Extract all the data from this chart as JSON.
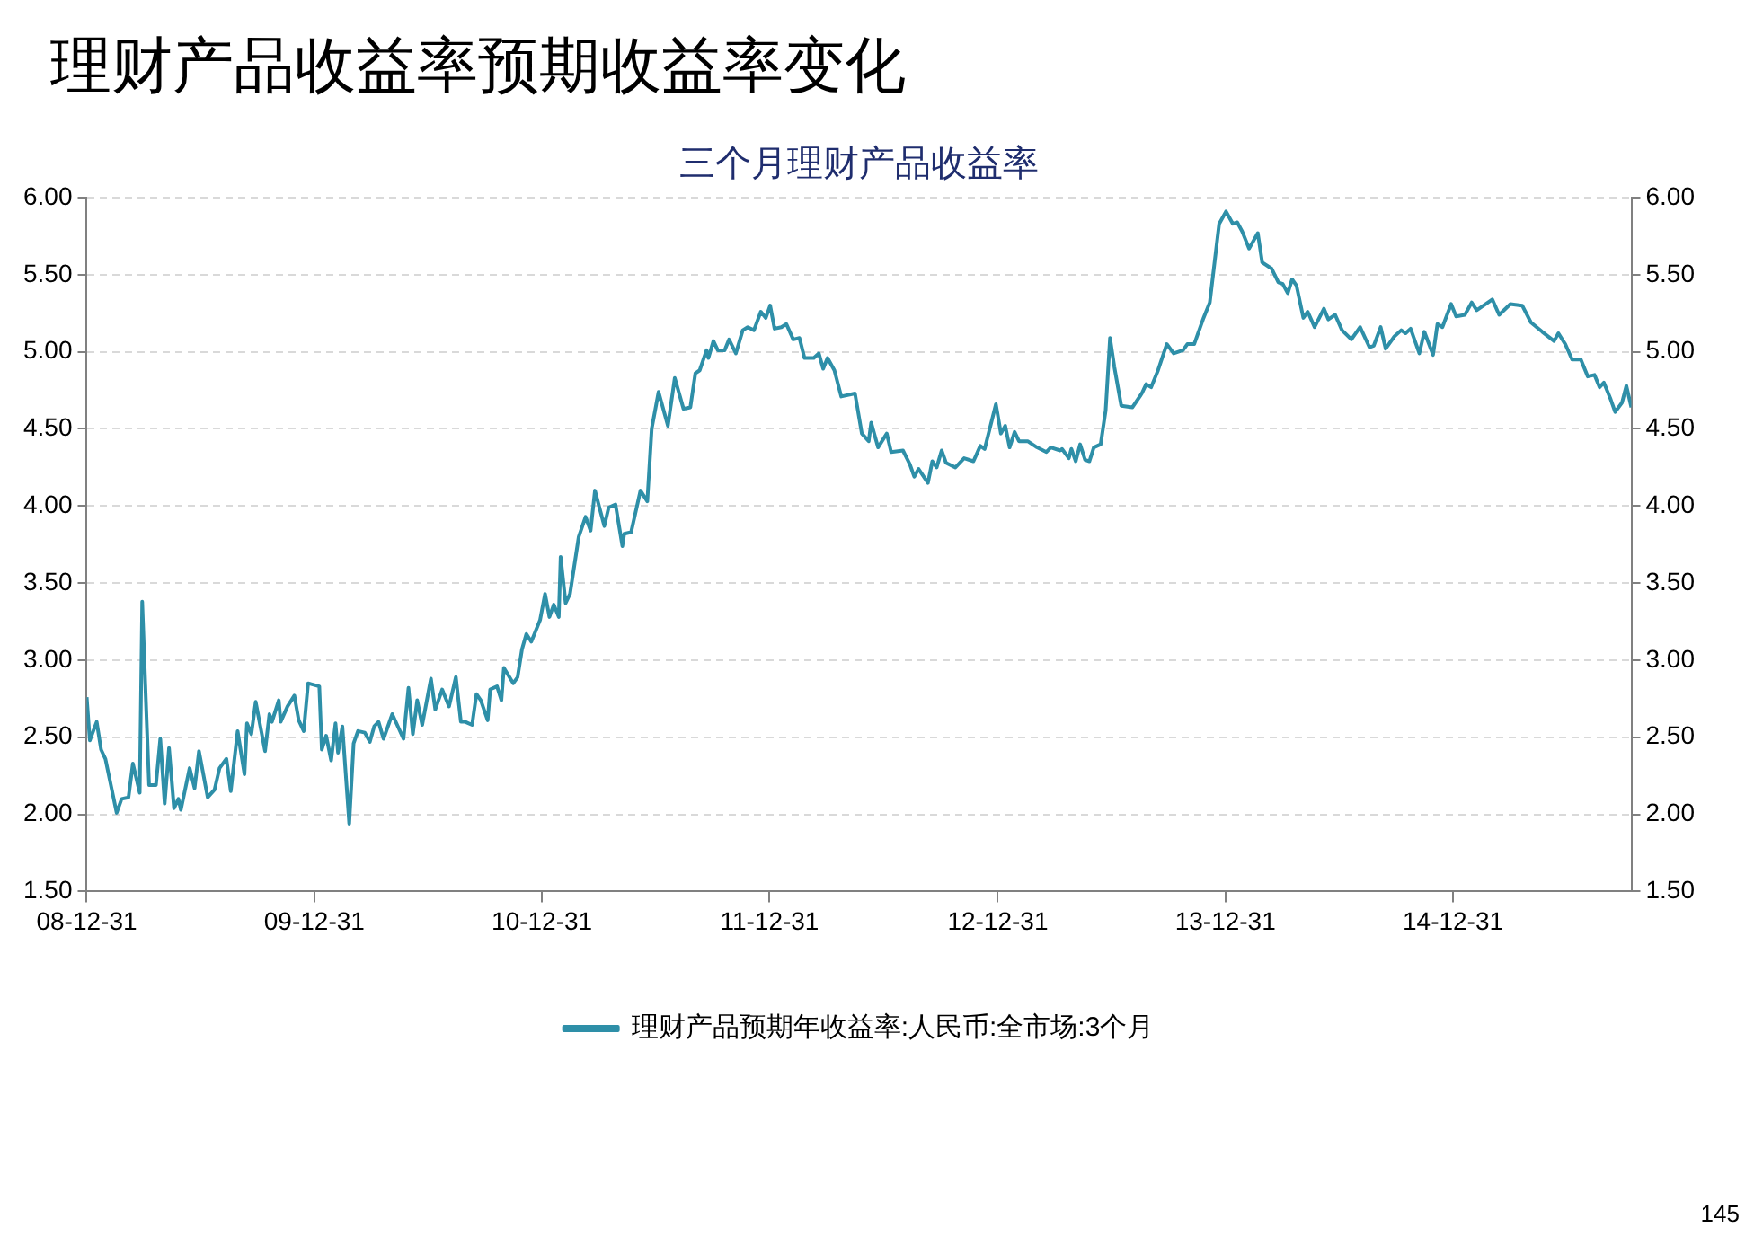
{
  "chart_data": {
    "type": "line",
    "title": "理财产品收益率预期收益率变化",
    "subtitle": "三个月理财产品收益率",
    "annotations": [
      "145"
    ],
    "xlim": [
      "2008-12-31",
      "2015-10-13"
    ],
    "xticks": [
      {
        "value": "2008-12-31",
        "label": "08-12-31"
      },
      {
        "value": "2009-12-31",
        "label": "09-12-31"
      },
      {
        "value": "2010-12-31",
        "label": "10-12-31"
      },
      {
        "value": "2011-12-31",
        "label": "11-12-31"
      },
      {
        "value": "2012-12-31",
        "label": "12-12-31"
      },
      {
        "value": "2013-12-31",
        "label": "13-12-31"
      },
      {
        "value": "2014-12-31",
        "label": "14-12-31"
      }
    ],
    "ylim": [
      1.5,
      6
    ],
    "yticks": [
      {
        "value": 1.5,
        "label": "1.50"
      },
      {
        "value": 2,
        "label": "2.00"
      },
      {
        "value": 2.5,
        "label": "2.50"
      },
      {
        "value": 3,
        "label": "3.00"
      },
      {
        "value": 3.5,
        "label": "3.50"
      },
      {
        "value": 4,
        "label": "4.00"
      },
      {
        "value": 4.5,
        "label": "4.50"
      },
      {
        "value": 5,
        "label": "5.00"
      },
      {
        "value": 5.5,
        "label": "5.50"
      },
      {
        "value": 6,
        "label": "6.00"
      }
    ],
    "y2lim": [
      1.5,
      6
    ],
    "y2ticks": [
      {
        "value": 1.5,
        "label": "1.50"
      },
      {
        "value": 2,
        "label": "2.00"
      },
      {
        "value": 2.5,
        "label": "2.50"
      },
      {
        "value": 3,
        "label": "3.00"
      },
      {
        "value": 3.5,
        "label": "3.50"
      },
      {
        "value": 4,
        "label": "4.00"
      },
      {
        "value": 4.5,
        "label": "4.50"
      },
      {
        "value": 5,
        "label": "5.00"
      },
      {
        "value": 5.5,
        "label": "5.50"
      },
      {
        "value": 6,
        "label": "6.00"
      }
    ],
    "grid": "y",
    "legend": "bottom",
    "marker": "none",
    "line_style": "solid",
    "series": [
      {
        "name": "理财产品预期年收益率:人民币:全市场:3个月",
        "color": "#2e8fa8",
        "x": [
          "2008-12-31",
          "2009-01-05",
          "2009-01-16",
          "2009-01-23",
          "2009-01-30",
          "2009-02-17",
          "2009-02-25",
          "2009-03-08",
          "2009-03-15",
          "2009-03-26",
          "2009-03-30",
          "2009-04-10",
          "2009-04-21",
          "2009-04-28",
          "2009-05-05",
          "2009-05-12",
          "2009-05-20",
          "2009-05-27",
          "2009-05-31",
          "2009-06-14",
          "2009-06-22",
          "2009-06-29",
          "2009-07-13",
          "2009-07-24",
          "2009-08-01",
          "2009-08-12",
          "2009-08-19",
          "2009-08-30",
          "2009-09-10",
          "2009-09-14",
          "2009-09-21",
          "2009-09-28",
          "2009-10-13",
          "2009-10-20",
          "2009-10-24",
          "2009-11-04",
          "2009-11-07",
          "2009-11-18",
          "2009-11-29",
          "2009-12-06",
          "2009-12-14",
          "2009-12-21",
          "2010-01-08",
          "2010-01-12",
          "2010-01-19",
          "2010-01-27",
          "2010-02-03",
          "2010-02-07",
          "2010-02-14",
          "2010-02-25",
          "2010-03-04",
          "2010-03-11",
          "2010-03-22",
          "2010-03-30",
          "2010-04-06",
          "2010-04-13",
          "2010-04-21",
          "2010-05-05",
          "2010-05-23",
          "2010-05-31",
          "2010-06-07",
          "2010-06-14",
          "2010-06-22",
          "2010-07-06",
          "2010-07-13",
          "2010-07-24",
          "2010-08-04",
          "2010-08-15",
          "2010-08-23",
          "2010-08-30",
          "2010-09-10",
          "2010-09-17",
          "2010-09-24",
          "2010-10-05",
          "2010-10-09",
          "2010-10-20",
          "2010-10-27",
          "2010-10-31",
          "2010-11-15",
          "2010-11-22",
          "2010-11-29",
          "2010-12-06",
          "2010-12-14",
          "2010-12-28",
          "2011-01-05",
          "2011-01-12",
          "2011-01-19",
          "2011-01-27",
          "2011-01-30",
          "2011-02-07",
          "2011-02-14",
          "2011-02-28",
          "2011-03-11",
          "2011-03-19",
          "2011-03-26",
          "2011-04-10",
          "2011-04-17",
          "2011-04-28",
          "2011-05-09",
          "2011-05-12",
          "2011-05-23",
          "2011-06-07",
          "2011-06-18",
          "2011-06-25",
          "2011-07-06",
          "2011-07-21",
          "2011-08-01",
          "2011-08-15",
          "2011-08-26",
          "2011-09-03",
          "2011-09-10",
          "2011-09-21",
          "2011-09-24",
          "2011-10-02",
          "2011-10-09",
          "2011-10-20",
          "2011-10-27",
          "2011-11-07",
          "2011-11-18",
          "2011-11-26",
          "2011-12-06",
          "2011-12-17",
          "2011-12-25",
          "2012-01-01",
          "2012-01-08",
          "2012-01-19",
          "2012-01-27",
          "2012-02-07",
          "2012-02-17",
          "2012-02-25",
          "2012-03-11",
          "2012-03-19",
          "2012-03-26",
          "2012-04-02",
          "2012-04-13",
          "2012-04-24",
          "2012-05-16",
          "2012-05-27",
          "2012-06-07",
          "2012-06-11",
          "2012-06-22",
          "2012-07-06",
          "2012-07-13",
          "2012-08-01",
          "2012-08-12",
          "2012-08-19",
          "2012-08-26",
          "2012-09-10",
          "2012-09-17",
          "2012-09-24",
          "2012-10-02",
          "2012-10-09",
          "2012-10-24",
          "2012-11-07",
          "2012-11-22",
          "2012-12-03",
          "2012-12-10",
          "2012-12-28",
          "2013-01-05",
          "2013-01-12",
          "2013-01-19",
          "2013-01-27",
          "2013-02-03",
          "2013-02-17",
          "2013-03-04",
          "2013-03-19",
          "2013-03-26",
          "2013-04-10",
          "2013-04-13",
          "2013-04-24",
          "2013-04-28",
          "2013-05-05",
          "2013-05-12",
          "2013-05-20",
          "2013-05-27",
          "2013-06-03",
          "2013-06-14",
          "2013-06-22",
          "2013-06-29",
          "2013-07-06",
          "2013-07-17",
          "2013-08-04",
          "2013-08-19",
          "2013-08-26",
          "2013-09-03",
          "2013-09-14",
          "2013-09-28",
          "2013-10-09",
          "2013-10-24",
          "2013-10-31",
          "2013-11-11",
          "2013-11-26",
          "2013-12-06",
          "2013-12-21",
          "2014-01-01",
          "2014-01-12",
          "2014-01-19",
          "2014-01-27",
          "2014-02-07",
          "2014-02-21",
          "2014-02-28",
          "2014-03-15",
          "2014-03-26",
          "2014-04-02",
          "2014-04-10",
          "2014-04-17",
          "2014-04-24",
          "2014-05-05",
          "2014-05-12",
          "2014-05-23",
          "2014-06-07",
          "2014-06-14",
          "2014-06-25",
          "2014-07-06",
          "2014-07-21",
          "2014-08-04",
          "2014-08-19",
          "2014-08-26",
          "2014-09-06",
          "2014-09-14",
          "2014-09-28",
          "2014-10-09",
          "2014-10-16",
          "2014-10-24",
          "2014-11-07",
          "2014-11-15",
          "2014-11-29",
          "2014-12-06",
          "2014-12-14",
          "2014-12-28",
          "2015-01-05",
          "2015-01-19",
          "2015-01-30",
          "2015-02-07",
          "2015-03-04",
          "2015-03-15",
          "2015-04-02",
          "2015-04-21",
          "2015-05-05",
          "2015-05-23",
          "2015-06-11",
          "2015-06-18",
          "2015-06-29",
          "2015-07-10",
          "2015-07-24",
          "2015-08-04",
          "2015-08-15",
          "2015-08-23",
          "2015-08-30",
          "2015-09-10",
          "2015-09-17",
          "2015-09-28",
          "2015-10-05",
          "2015-10-13"
        ],
        "values": [
          2.76,
          2.48,
          2.6,
          2.42,
          2.36,
          2.01,
          2.1,
          2.11,
          2.33,
          2.14,
          3.38,
          2.19,
          2.19,
          2.49,
          2.07,
          2.43,
          2.04,
          2.1,
          2.03,
          2.3,
          2.17,
          2.41,
          2.11,
          2.16,
          2.3,
          2.36,
          2.15,
          2.54,
          2.26,
          2.59,
          2.52,
          2.73,
          2.41,
          2.65,
          2.6,
          2.74,
          2.6,
          2.7,
          2.77,
          2.61,
          2.54,
          2.85,
          2.83,
          2.42,
          2.51,
          2.35,
          2.59,
          2.4,
          2.57,
          1.94,
          2.46,
          2.54,
          2.53,
          2.47,
          2.57,
          2.6,
          2.49,
          2.65,
          2.49,
          2.82,
          2.52,
          2.74,
          2.58,
          2.88,
          2.68,
          2.81,
          2.7,
          2.89,
          2.6,
          2.6,
          2.58,
          2.78,
          2.74,
          2.61,
          2.81,
          2.83,
          2.74,
          2.95,
          2.85,
          2.89,
          3.07,
          3.17,
          3.12,
          3.26,
          3.43,
          3.28,
          3.36,
          3.28,
          3.67,
          3.37,
          3.43,
          3.8,
          3.93,
          3.84,
          4.1,
          3.87,
          3.99,
          4.01,
          3.74,
          3.82,
          3.83,
          4.1,
          4.03,
          4.5,
          4.74,
          4.52,
          4.83,
          4.63,
          4.64,
          4.86,
          4.88,
          5.01,
          4.96,
          5.07,
          5.01,
          5.01,
          5.08,
          4.99,
          5.14,
          5.16,
          5.14,
          5.26,
          5.22,
          5.3,
          5.15,
          5.16,
          5.18,
          5.08,
          5.09,
          4.96,
          4.96,
          4.99,
          4.89,
          4.96,
          4.88,
          4.71,
          4.73,
          4.47,
          4.42,
          4.54,
          4.38,
          4.47,
          4.35,
          4.36,
          4.27,
          4.19,
          4.24,
          4.15,
          4.29,
          4.25,
          4.36,
          4.28,
          4.25,
          4.31,
          4.29,
          4.39,
          4.37,
          4.66,
          4.47,
          4.52,
          4.38,
          4.48,
          4.42,
          4.42,
          4.38,
          4.35,
          4.38,
          4.36,
          4.37,
          4.31,
          4.37,
          4.29,
          4.4,
          4.3,
          4.29,
          4.38,
          4.4,
          4.62,
          5.09,
          4.9,
          4.65,
          4.64,
          4.73,
          4.79,
          4.77,
          4.88,
          5.05,
          4.99,
          5.01,
          5.05,
          5.05,
          5.22,
          5.32,
          5.83,
          5.91,
          5.83,
          5.84,
          5.78,
          5.67,
          5.77,
          5.58,
          5.54,
          5.45,
          5.44,
          5.38,
          5.47,
          5.43,
          5.22,
          5.26,
          5.16,
          5.28,
          5.21,
          5.24,
          5.14,
          5.08,
          5.16,
          5.03,
          5.04,
          5.16,
          5.02,
          5.1,
          5.14,
          5.12,
          5.15,
          4.99,
          5.13,
          4.98,
          5.18,
          5.16,
          5.31,
          5.23,
          5.24,
          5.32,
          5.27,
          5.34,
          5.24,
          5.31,
          5.3,
          5.19,
          5.13,
          5.07,
          5.12,
          5.05,
          4.95,
          4.95,
          4.84,
          4.85,
          4.77,
          4.8,
          4.69,
          4.61,
          4.67,
          4.78,
          4.64
        ]
      }
    ]
  }
}
